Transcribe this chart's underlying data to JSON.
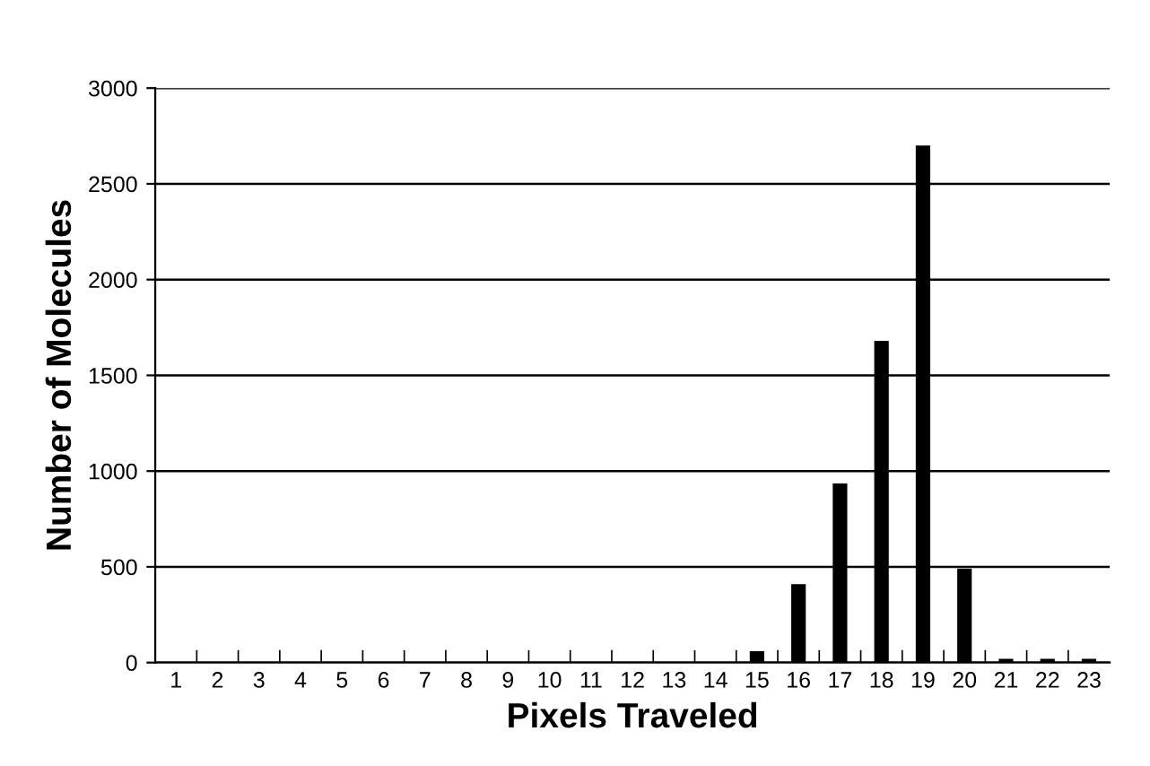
{
  "chart_data": {
    "type": "bar",
    "xlabel": "Pixels Traveled",
    "ylabel": "Number of Molecules",
    "categories": [
      "1",
      "2",
      "3",
      "4",
      "5",
      "6",
      "7",
      "8",
      "9",
      "10",
      "11",
      "12",
      "13",
      "14",
      "15",
      "16",
      "17",
      "18",
      "19",
      "20",
      "21",
      "22",
      "23"
    ],
    "values": [
      0,
      0,
      0,
      0,
      0,
      0,
      0,
      0,
      0,
      0,
      0,
      0,
      0,
      0,
      60,
      410,
      935,
      1680,
      2700,
      490,
      20,
      20,
      20
    ],
    "color": "#000000",
    "ylim": [
      0,
      3000
    ],
    "yticks": [
      0,
      500,
      1000,
      1500,
      2000,
      2500,
      3000
    ],
    "grid": "y"
  }
}
